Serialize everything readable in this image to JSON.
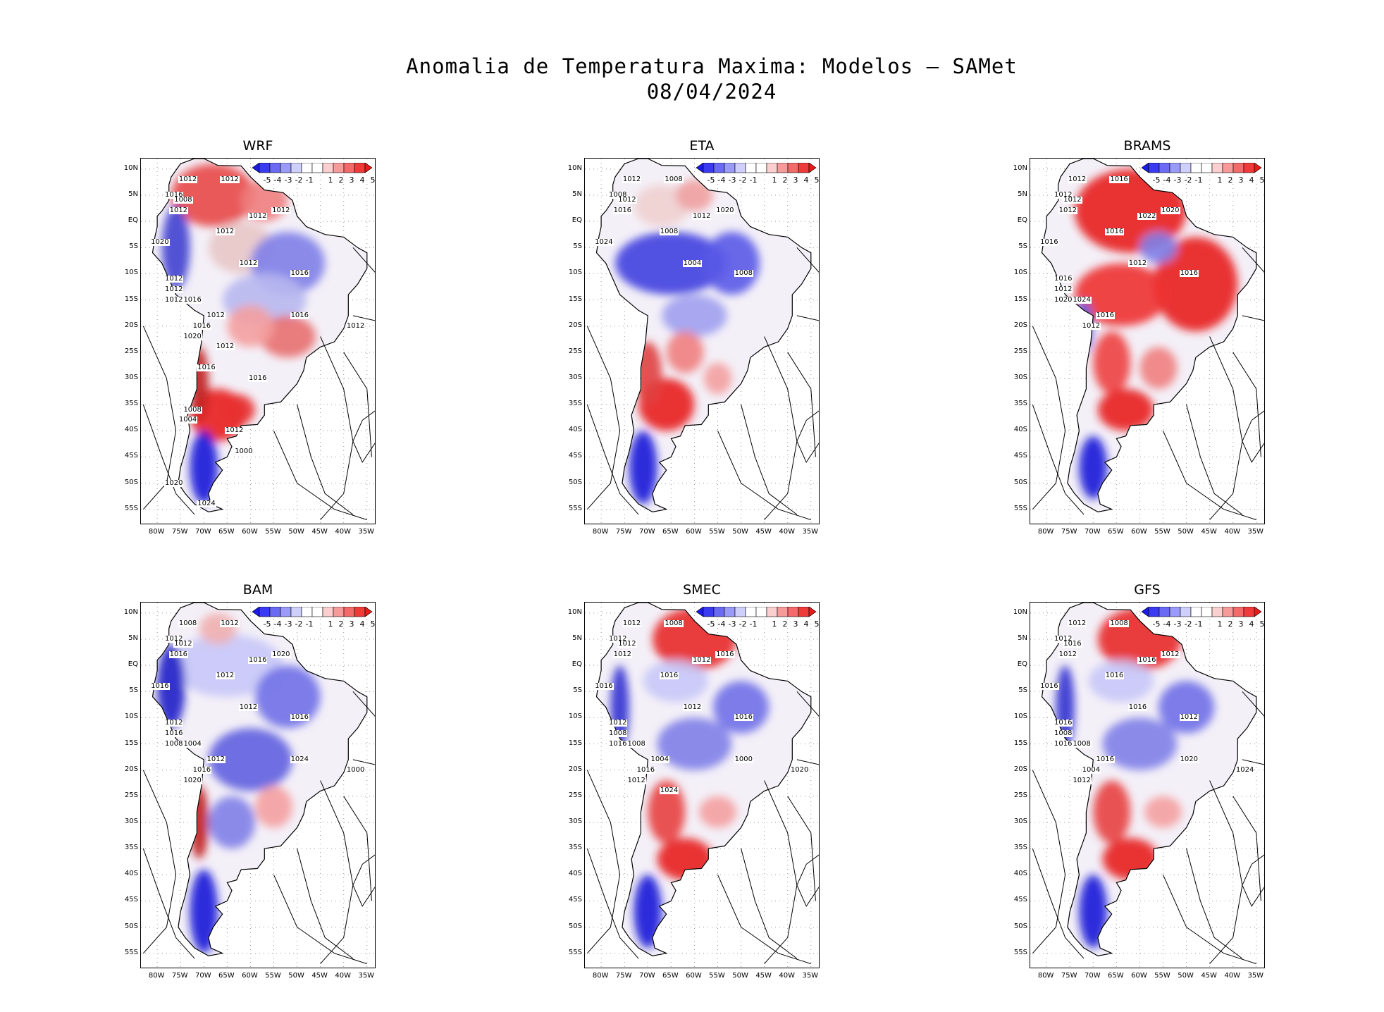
{
  "figure": {
    "title_line1": "Anomalia de Temperatura Maxima: Modelos – SAMet",
    "title_line2": "08/04/2024"
  },
  "axes": {
    "lat_labels": [
      "10N",
      "5N",
      "EQ",
      "5S",
      "10S",
      "15S",
      "20S",
      "25S",
      "30S",
      "35S",
      "40S",
      "45S",
      "50S",
      "55S"
    ],
    "lon_labels": [
      "80W",
      "75W",
      "70W",
      "65W",
      "60W",
      "55W",
      "50W",
      "45W",
      "40W",
      "35W"
    ]
  },
  "colorbar": {
    "labels": [
      "-5",
      "-4",
      "-3",
      "-2",
      "-1",
      "1",
      "2",
      "3",
      "4",
      "5"
    ],
    "colors": [
      "#1a1aee",
      "#3a3af0",
      "#6a6af4",
      "#9a9af8",
      "#cfcffb",
      "#ffffff",
      "#ffffff",
      "#fbcfcf",
      "#f79a9a",
      "#f36a6a",
      "#ef3a3a",
      "#e81a1a"
    ]
  },
  "colors": {
    "warm": "#e8202a",
    "cold": "#2020e0",
    "neutral": "#ffffff",
    "contour": "#000000"
  },
  "panels": [
    {
      "name": "WRF",
      "bias": "warm-north",
      "contour_labels": [
        "1012",
        "1012",
        "1016",
        "1008",
        "1012",
        "1012",
        "1012",
        "1012",
        "1020",
        "1012",
        "1016",
        "1012",
        "1012",
        "1012",
        "1016",
        "1016",
        "1012",
        "1020",
        "1016",
        "1012",
        "1012",
        "1016",
        "1016",
        "1008",
        "1004",
        "1012",
        "1000",
        "1020",
        "1024"
      ]
    },
    {
      "name": "ETA",
      "bias": "cold-north",
      "contour_labels": [
        "1012",
        "1008",
        "1008",
        "1012",
        "1016",
        "1008",
        "1012",
        "1020",
        "1024",
        "1004",
        "1008"
      ]
    },
    {
      "name": "BRAMS",
      "bias": "hot",
      "contour_labels": [
        "1012",
        "1016",
        "1012",
        "1012",
        "1012",
        "1016",
        "1022",
        "1020",
        "1016",
        "1012",
        "1016",
        "1016",
        "1012",
        "1020",
        "1024",
        "1012",
        "1016"
      ]
    },
    {
      "name": "BAM",
      "bias": "cold",
      "contour_labels": [
        "1008",
        "1012",
        "1012",
        "1012",
        "1016",
        "1012",
        "1016",
        "1020",
        "1016",
        "1012",
        "1016",
        "1012",
        "1016",
        "1008",
        "1004",
        "1016",
        "1012",
        "1020",
        "1024",
        "1000"
      ]
    },
    {
      "name": "SMEC",
      "bias": "mixed",
      "contour_labels": [
        "1012",
        "1008",
        "1012",
        "1012",
        "1012",
        "1016",
        "1012",
        "1016",
        "1016",
        "1012",
        "1016",
        "1012",
        "1008",
        "1016",
        "1008",
        "1016",
        "1004",
        "1012",
        "1000",
        "1020",
        "1024"
      ]
    },
    {
      "name": "GFS",
      "bias": "mixed",
      "contour_labels": [
        "1012",
        "1008",
        "1012",
        "1016",
        "1012",
        "1016",
        "1016",
        "1012",
        "1016",
        "1016",
        "1012",
        "1016",
        "1008",
        "1016",
        "1008",
        "1004",
        "1016",
        "1012",
        "1020",
        "1024"
      ]
    }
  ]
}
